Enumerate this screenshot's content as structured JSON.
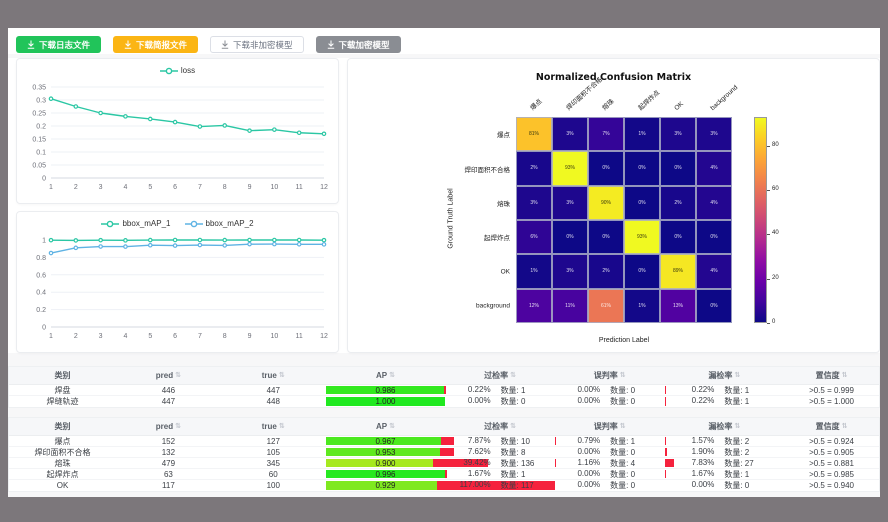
{
  "toolbar": {
    "buttons": [
      {
        "label": "下载日志文件",
        "variant": "green"
      },
      {
        "label": "下载简报文件",
        "variant": "orange"
      },
      {
        "label": "下载非加密模型",
        "variant": "plain"
      },
      {
        "label": "下载加密模型",
        "variant": "gray"
      }
    ]
  },
  "chart_data": [
    {
      "type": "line",
      "title": "",
      "x": [
        1,
        2,
        3,
        4,
        5,
        6,
        7,
        8,
        9,
        10,
        11,
        12
      ],
      "series": [
        {
          "name": "loss",
          "color": "#2bc7a4",
          "values": [
            0.305,
            0.275,
            0.25,
            0.237,
            0.227,
            0.215,
            0.198,
            0.202,
            0.182,
            0.186,
            0.174,
            0.17
          ]
        }
      ],
      "ylim": [
        0,
        0.35
      ],
      "yticks": [
        0,
        0.05,
        0.1,
        0.15,
        0.2,
        0.25,
        0.3,
        0.35
      ],
      "grid": true,
      "legend_position": "top"
    },
    {
      "type": "line",
      "title": "",
      "x": [
        1,
        2,
        3,
        4,
        5,
        6,
        7,
        8,
        9,
        10,
        11,
        12
      ],
      "series": [
        {
          "name": "bbox_mAP_1",
          "color": "#2bc7a4",
          "values": [
            0.998,
            0.995,
            0.998,
            0.996,
            0.999,
            1.0,
            1.0,
            0.999,
            1.0,
            1.0,
            1.0,
            0.998
          ]
        },
        {
          "name": "bbox_mAP_2",
          "color": "#5fb3e4",
          "values": [
            0.85,
            0.91,
            0.925,
            0.924,
            0.94,
            0.936,
            0.942,
            0.938,
            0.952,
            0.953,
            0.951,
            0.95
          ]
        }
      ],
      "ylim": [
        0,
        1
      ],
      "yticks": [
        0,
        0.2,
        0.4,
        0.6,
        0.8,
        1
      ],
      "grid": true,
      "legend_position": "top"
    },
    {
      "type": "heatmap",
      "title": "Normalized Confusion Matrix",
      "xlabel": "Prediction Label",
      "ylabel": "Ground Truth Label",
      "categories": [
        "爆点",
        "焊印面积不合格",
        "熔珠",
        "起焊炸点",
        "OK",
        "background"
      ],
      "values": [
        [
          81,
          3,
          7,
          1,
          3,
          3
        ],
        [
          2,
          93,
          0,
          0,
          0,
          4
        ],
        [
          3,
          3,
          90,
          0,
          2,
          4
        ],
        [
          6,
          0,
          0,
          93,
          0,
          0
        ],
        [
          1,
          3,
          2,
          0,
          89,
          4
        ],
        [
          12,
          11,
          61,
          1,
          13,
          0
        ]
      ],
      "vmax": 93,
      "colormap": "plasma",
      "colorbar_ticks": [
        80,
        60,
        40,
        20,
        0
      ]
    }
  ],
  "tables": [
    {
      "headers": [
        "类别",
        "pred",
        "true",
        "AP",
        "过检率",
        "误判率",
        "漏检率",
        "置信度"
      ],
      "rows": [
        {
          "class": "焊盘",
          "pred": "446",
          "true": "447",
          "ap": "0.986",
          "over_rate": "0.22%",
          "over_count": "数量: 1",
          "mis_rate": "0.00%",
          "mis_count": "数量: 0",
          "miss_rate": "0.22%",
          "miss_count": "数量: 1",
          "confidence": ">0.5 = 0.999"
        },
        {
          "class": "焊缝轨迹",
          "pred": "447",
          "true": "448",
          "ap": "1.000",
          "over_rate": "0.00%",
          "over_count": "数量: 0",
          "mis_rate": "0.00%",
          "mis_count": "数量: 0",
          "miss_rate": "0.22%",
          "miss_count": "数量: 1",
          "confidence": ">0.5 = 1.000"
        }
      ]
    },
    {
      "headers": [
        "类别",
        "pred",
        "true",
        "AP",
        "过检率",
        "误判率",
        "漏检率",
        "置信度"
      ],
      "rows": [
        {
          "class": "爆点",
          "pred": "152",
          "true": "127",
          "ap": "0.967",
          "over_rate": "7.87%",
          "over_count": "数量: 10",
          "mis_rate": "0.79%",
          "mis_count": "数量: 1",
          "miss_rate": "1.57%",
          "miss_count": "数量: 2",
          "confidence": ">0.5 = 0.924"
        },
        {
          "class": "焊印面积不合格",
          "pred": "132",
          "true": "105",
          "ap": "0.953",
          "over_rate": "7.62%",
          "over_count": "数量: 8",
          "mis_rate": "0.00%",
          "mis_count": "数量: 0",
          "miss_rate": "1.90%",
          "miss_count": "数量: 2",
          "confidence": ">0.5 = 0.905"
        },
        {
          "class": "熔珠",
          "pred": "479",
          "true": "345",
          "ap": "0.900",
          "over_rate": "39.42%",
          "over_count": "数量: 136",
          "mis_rate": "1.16%",
          "mis_count": "数量: 4",
          "miss_rate": "7.83%",
          "miss_count": "数量: 27",
          "confidence": ">0.5 = 0.881"
        },
        {
          "class": "起焊炸点",
          "pred": "63",
          "true": "60",
          "ap": "0.996",
          "over_rate": "1.67%",
          "over_count": "数量: 1",
          "mis_rate": "0.00%",
          "mis_count": "数量: 0",
          "miss_rate": "1.67%",
          "miss_count": "数量: 1",
          "confidence": ">0.5 = 0.985"
        },
        {
          "class": "OK",
          "pred": "117",
          "true": "100",
          "ap": "0.929",
          "over_rate": "117.00%",
          "over_count": "数量: 117",
          "mis_rate": "0.00%",
          "mis_count": "数量: 0",
          "miss_rate": "0.00%",
          "miss_count": "数量: 0",
          "confidence": ">0.5 = 0.940"
        }
      ]
    }
  ],
  "colors": {
    "accent_red": "#f5223d",
    "teal_series": "#2bc7a4",
    "blue_series": "#5fb3e4",
    "chrome_gray": "#7c777b"
  }
}
